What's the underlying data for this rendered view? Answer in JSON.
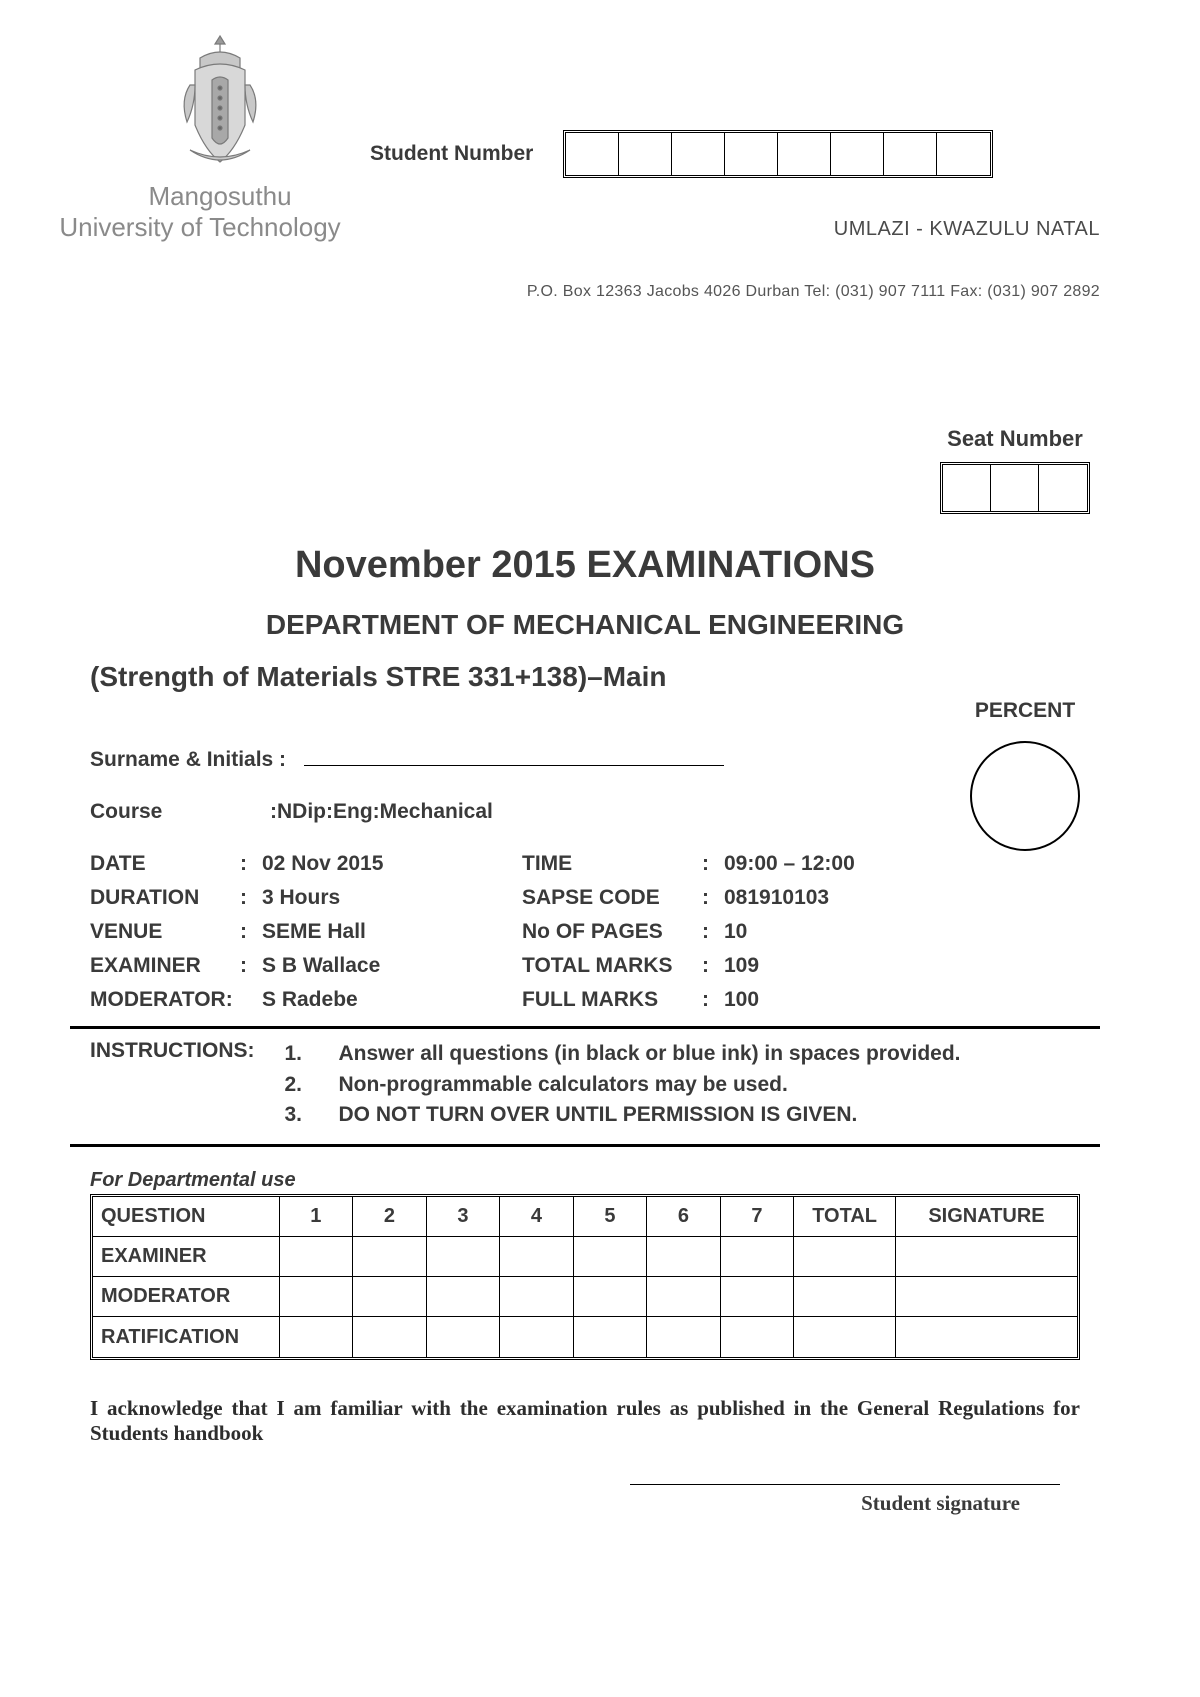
{
  "university": {
    "name_line1": "Mangosuthu",
    "name_line2": "University of Technology",
    "location": "UMLAZI - KWAZULU NATAL",
    "contact": "P.O. Box 12363 Jacobs 4026 Durban  Tel: (031) 907 7111  Fax: (031) 907 2892"
  },
  "labels": {
    "student_number": "Student Number",
    "seat_number": "Seat Number",
    "percent": "PERCENT",
    "surname": "Surname & Initials :",
    "course_label": "Course",
    "instructions": "INSTRUCTIONS:",
    "dept_use": "For Departmental use",
    "student_signature": "Student signature"
  },
  "student_number_cells": 8,
  "seat_number_cells": 3,
  "titles": {
    "exam": "November 2015 EXAMINATIONS",
    "department": "DEPARTMENT OF MECHANICAL ENGINEERING",
    "course": "(Strength of Materials STRE 331+138)–Main"
  },
  "course_value": ":NDip:Eng:Mechanical",
  "details": {
    "left": [
      {
        "label": "DATE",
        "value": "02 Nov 2015"
      },
      {
        "label": "DURATION",
        "value": "3 Hours"
      },
      {
        "label": "VENUE",
        "value": "SEME Hall"
      },
      {
        "label": "EXAMINER",
        "value": "S B Wallace"
      },
      {
        "label": "MODERATOR:",
        "value": "S Radebe",
        "no_colon": true
      }
    ],
    "right": [
      {
        "label": "TIME",
        "value": "09:00 – 12:00"
      },
      {
        "label": "SAPSE CODE",
        "value": "081910103"
      },
      {
        "label": "No OF PAGES",
        "value": "10"
      },
      {
        "label": "TOTAL MARKS",
        "value": "109"
      },
      {
        "label": "FULL MARKS",
        "value": "100"
      }
    ]
  },
  "instructions_list": [
    {
      "num": "1.",
      "text": "Answer all questions (in black or blue ink) in spaces provided."
    },
    {
      "num": "2.",
      "text": "Non-programmable calculators may be used."
    },
    {
      "num": "3.",
      "text": "DO NOT TURN OVER UNTIL PERMISSION IS GIVEN."
    }
  ],
  "marks_table": {
    "header": [
      "QUESTION",
      "1",
      "2",
      "3",
      "4",
      "5",
      "6",
      "7",
      "TOTAL",
      "SIGNATURE"
    ],
    "rows": [
      "EXAMINER",
      "MODERATOR",
      "RATIFICATION"
    ]
  },
  "acknowledgement": "I acknowledge that I am familiar with the examination rules as published in the General Regulations for Students handbook",
  "crest_colors": {
    "stroke": "#7a7a7a",
    "fill": "#bdbdbd"
  }
}
